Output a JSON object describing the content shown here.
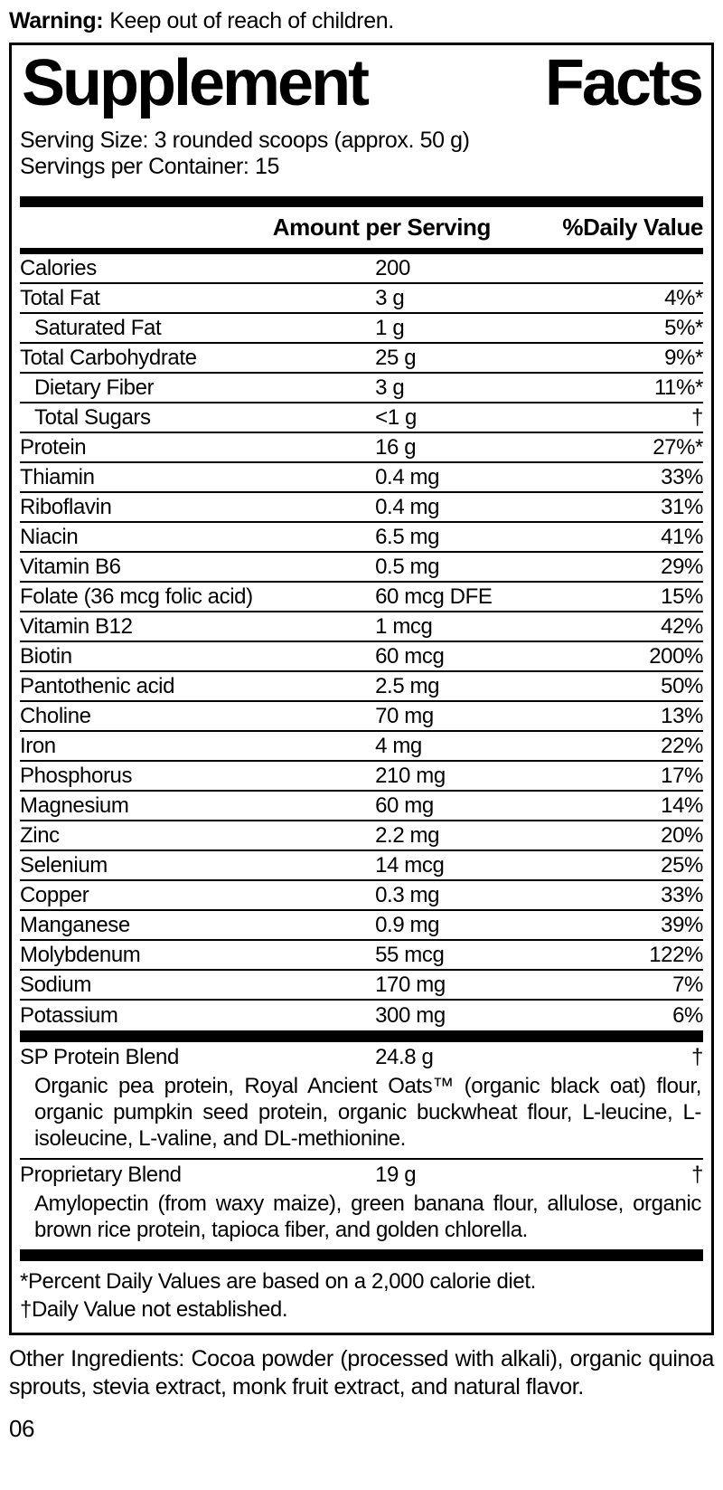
{
  "warning": {
    "label": "Warning:",
    "text": "Keep out of reach of children."
  },
  "panel": {
    "title": "Supplement Facts",
    "serving_size": "Serving Size: 3 rounded scoops (approx. 50 g)",
    "servings_per_container": "Servings per Container: 15",
    "header": {
      "amount": "Amount per Serving",
      "daily_value": "%Daily Value"
    },
    "rows": [
      {
        "name": "Calories",
        "amount": "200",
        "dv": "",
        "indent": false
      },
      {
        "name": "Total Fat",
        "amount": "3 g",
        "dv": "4%*",
        "indent": false
      },
      {
        "name": "Saturated Fat",
        "amount": "1 g",
        "dv": "5%*",
        "indent": true
      },
      {
        "name": "Total Carbohydrate",
        "amount": "25 g",
        "dv": "9%*",
        "indent": false
      },
      {
        "name": "Dietary Fiber",
        "amount": "3 g",
        "dv": "11%*",
        "indent": true
      },
      {
        "name": "Total Sugars",
        "amount": "<1 g",
        "dv": "†",
        "indent": true
      },
      {
        "name": "Protein",
        "amount": "16 g",
        "dv": "27%*",
        "indent": false
      },
      {
        "name": "Thiamin",
        "amount": "0.4 mg",
        "dv": "33%",
        "indent": false
      },
      {
        "name": "Riboflavin",
        "amount": "0.4 mg",
        "dv": "31%",
        "indent": false
      },
      {
        "name": "Niacin",
        "amount": "6.5 mg",
        "dv": "41%",
        "indent": false
      },
      {
        "name": "Vitamin B6",
        "amount": "0.5 mg",
        "dv": "29%",
        "indent": false
      },
      {
        "name": "Folate (36 mcg folic acid)",
        "amount": "60 mcg DFE",
        "dv": "15%",
        "indent": false
      },
      {
        "name": "Vitamin B12",
        "amount": "1 mcg",
        "dv": "42%",
        "indent": false
      },
      {
        "name": "Biotin",
        "amount": "60 mcg",
        "dv": "200%",
        "indent": false
      },
      {
        "name": "Pantothenic acid",
        "amount": "2.5 mg",
        "dv": "50%",
        "indent": false
      },
      {
        "name": "Choline",
        "amount": "70 mg",
        "dv": "13%",
        "indent": false
      },
      {
        "name": "Iron",
        "amount": "4 mg",
        "dv": "22%",
        "indent": false
      },
      {
        "name": "Phosphorus",
        "amount": "210 mg",
        "dv": "17%",
        "indent": false
      },
      {
        "name": "Magnesium",
        "amount": "60 mg",
        "dv": "14%",
        "indent": false
      },
      {
        "name": "Zinc",
        "amount": "2.2 mg",
        "dv": "20%",
        "indent": false
      },
      {
        "name": "Selenium",
        "amount": "14 mcg",
        "dv": "25%",
        "indent": false
      },
      {
        "name": "Copper",
        "amount": "0.3 mg",
        "dv": "33%",
        "indent": false
      },
      {
        "name": "Manganese",
        "amount": "0.9 mg",
        "dv": "39%",
        "indent": false
      },
      {
        "name": "Molybdenum",
        "amount": "55 mcg",
        "dv": "122%",
        "indent": false
      },
      {
        "name": "Sodium",
        "amount": "170 mg",
        "dv": "7%",
        "indent": false
      },
      {
        "name": "Potassium",
        "amount": "300 mg",
        "dv": "6%",
        "indent": false
      }
    ],
    "blends": [
      {
        "name": "SP Protein Blend",
        "amount": "24.8 g",
        "dv": "†",
        "description": "Organic pea protein, Royal Ancient Oats™ (organic black oat) flour, organic pumpkin seed protein, organic buckwheat flour, L-leucine, L-isoleucine, L-valine, and DL-methionine."
      },
      {
        "name": "Proprietary Blend",
        "amount": "19 g",
        "dv": "†",
        "description": "Amylopectin (from waxy maize), green banana flour, allulose, organic brown rice protein, tapioca fiber, and golden chlorella."
      }
    ],
    "footnotes": [
      "*Percent Daily Values are based on a 2,000 calorie diet.",
      "†Daily Value not established."
    ]
  },
  "other_ingredients": "Other Ingredients: Cocoa powder (processed with alkali), organic quinoa sprouts, stevia extract, monk fruit extract, and natural flavor.",
  "page_number": "06",
  "colors": {
    "text": "#000000",
    "panel_border": "#000000",
    "background": "#ffffff"
  }
}
